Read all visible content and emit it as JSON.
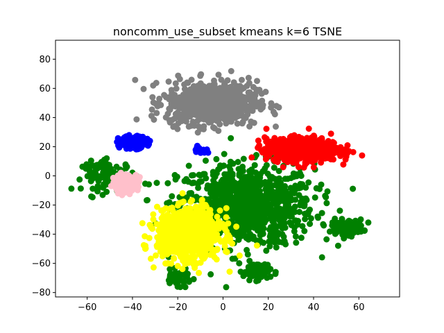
{
  "chart_data": {
    "type": "scatter",
    "title": "noncomm_use_subset kmeans k=6 TSNE",
    "xlabel": "",
    "ylabel": "",
    "xlim": [
      -74,
      78
    ],
    "ylim": [
      -83,
      93
    ],
    "x_ticks": [
      -60,
      -40,
      -20,
      0,
      20,
      40,
      60
    ],
    "y_ticks": [
      -80,
      -60,
      -40,
      -20,
      0,
      20,
      40,
      60,
      80
    ],
    "x_tick_labels": [
      "−60",
      "−40",
      "−20",
      "0",
      "20",
      "40",
      "60"
    ],
    "y_tick_labels": [
      "−80",
      "−60",
      "−40",
      "−20",
      "0",
      "20",
      "40",
      "60",
      "80"
    ],
    "grid": false,
    "legend": "none",
    "clusters": [
      {
        "color": "#008000",
        "center": [
          10,
          -20
        ],
        "spread": [
          30,
          28
        ],
        "count": 900,
        "extra_groups": [
          {
            "center": [
              55,
              -35
            ],
            "spread": [
              7,
              5
            ],
            "count": 120
          },
          {
            "center": [
              -50,
              0
            ],
            "spread": [
              12,
              10
            ],
            "count": 120
          },
          {
            "center": [
              15,
              -65
            ],
            "spread": [
              6,
              6
            ],
            "count": 80
          },
          {
            "center": [
              -20,
              -70
            ],
            "spread": [
              6,
              5
            ],
            "count": 50
          }
        ]
      },
      {
        "color": "#808080",
        "center": [
          -5,
          50
        ],
        "spread": [
          20,
          15
        ],
        "count": 700
      },
      {
        "color": "#ff0000",
        "center": [
          35,
          18
        ],
        "spread": [
          16,
          8
        ],
        "count": 600
      },
      {
        "color": "#ffff00",
        "center": [
          -15,
          -40
        ],
        "spread": [
          14,
          17
        ],
        "count": 900
      },
      {
        "color": "#0000ff",
        "center": [
          -40,
          23
        ],
        "spread": [
          6,
          4
        ],
        "count": 180,
        "extra_groups": [
          {
            "center": [
              -10,
              18
            ],
            "spread": [
              3,
              3
            ],
            "count": 20
          }
        ]
      },
      {
        "color": "#ffc0cb",
        "center": [
          -43,
          -5
        ],
        "spread": [
          5,
          6
        ],
        "count": 180
      }
    ]
  }
}
